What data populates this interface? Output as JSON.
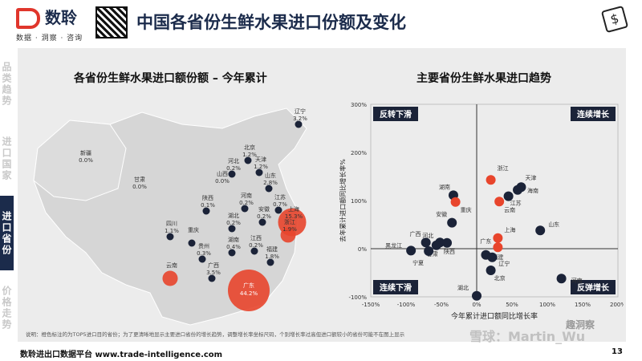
{
  "brand": {
    "name": "数聆",
    "tagline": "数据 · 洞察 · 咨询"
  },
  "page_title": "中国各省份生鲜水果进口份额及变化",
  "sidebar": [
    {
      "label": "品类趋势",
      "active": false
    },
    {
      "label": "进口国家",
      "active": false
    },
    {
      "label": "进口省份",
      "active": true
    },
    {
      "label": "价格走势",
      "active": false
    }
  ],
  "map": {
    "title": "各省份生鲜水果进口额份额 – 今年累计",
    "provinces": [
      {
        "name": "辽宁",
        "share": "3.2%",
        "highlight": false
      },
      {
        "name": "北京",
        "share": "1.2%",
        "highlight": false
      },
      {
        "name": "天津",
        "share": "1.2%",
        "highlight": false
      },
      {
        "name": "河北",
        "share": "0.2%",
        "highlight": false
      },
      {
        "name": "山西",
        "share": "0.0%",
        "highlight": false
      },
      {
        "name": "山东",
        "share": "2.8%",
        "highlight": false
      },
      {
        "name": "江苏",
        "share": "0.7%",
        "highlight": false
      },
      {
        "name": "上海",
        "share": "15.3%",
        "highlight": true
      },
      {
        "name": "浙江",
        "share": "1.9%",
        "highlight": true
      },
      {
        "name": "河南",
        "share": "0.2%",
        "highlight": false
      },
      {
        "name": "陕西",
        "share": "0.1%",
        "highlight": false
      },
      {
        "name": "安徽",
        "share": "0.2%",
        "highlight": false
      },
      {
        "name": "湖北",
        "share": "0.2%",
        "highlight": false
      },
      {
        "name": "四川",
        "share": "1.1%",
        "highlight": false
      },
      {
        "name": "重庆",
        "share": "",
        "highlight": false
      },
      {
        "name": "贵州",
        "share": "0.3%",
        "highlight": false
      },
      {
        "name": "湖南",
        "share": "0.4%",
        "highlight": false
      },
      {
        "name": "江西",
        "share": "0.2%",
        "highlight": false
      },
      {
        "name": "福建",
        "share": "1.8%",
        "highlight": false
      },
      {
        "name": "广东",
        "share": "44.2%",
        "highlight": true
      },
      {
        "name": "广西",
        "share": "3.5%",
        "highlight": false
      },
      {
        "name": "云南",
        "share": "",
        "highlight": true
      },
      {
        "name": "海南",
        "share": "1.3%",
        "highlight": false
      },
      {
        "name": "新疆",
        "share": "0.0%",
        "highlight": false
      },
      {
        "name": "甘肃",
        "share": "0.0%",
        "highlight": false
      }
    ]
  },
  "footnote": "说明：橙色标注的为TOP5进口目的省份；为了更清晰地显示主要进口省份的增长趋势，调整增长率坐标尺码，个别增长率过高但进口额较小的省份可能不在图上显示",
  "chart_data": {
    "type": "scatter",
    "title": "主要省份生鲜水果进口趋势",
    "xlabel": "今年累计进口额同比增长率",
    "ylabel": "去年累计进口额同比增长率%",
    "xlim": [
      -150,
      200
    ],
    "ylim": [
      -100,
      300
    ],
    "xticks": [
      "-150%",
      "-100%",
      "-50%",
      "0%",
      "50%",
      "100%",
      "150%",
      "200%"
    ],
    "yticks": [
      "-100%",
      "0%",
      "100%",
      "200%",
      "300%"
    ],
    "grid": false,
    "quadrants": {
      "top_left": "反转下滑",
      "top_right": "连续增长",
      "bottom_left": "连续下滑",
      "bottom_right": "反弹增长"
    },
    "colors": {
      "top5": "#e8452c",
      "other": "#1b2338"
    },
    "points": [
      {
        "label": "浙江",
        "x": 20,
        "y": 143,
        "top5": true
      },
      {
        "label": "天津",
        "x": 63,
        "y": 128,
        "top5": false
      },
      {
        "label": "海南",
        "x": 58,
        "y": 122,
        "top5": false
      },
      {
        "label": "江苏",
        "x": 45,
        "y": 109,
        "top5": false
      },
      {
        "label": "云南",
        "x": 32,
        "y": 98,
        "top5": true
      },
      {
        "label": "湖南",
        "x": -33,
        "y": 111,
        "top5": false
      },
      {
        "label": "重庆",
        "x": -30,
        "y": 97,
        "top5": true
      },
      {
        "label": "安徽",
        "x": -35,
        "y": 54,
        "top5": false
      },
      {
        "label": "山东",
        "x": 90,
        "y": 38,
        "top5": false
      },
      {
        "label": "上海",
        "x": 30,
        "y": 22,
        "top5": true
      },
      {
        "label": "广东",
        "x": 30,
        "y": 3,
        "top5": true
      },
      {
        "label": "广西",
        "x": -72,
        "y": 13,
        "top5": false
      },
      {
        "label": "河北",
        "x": -52,
        "y": 13,
        "top5": false
      },
      {
        "label": "黑龙江",
        "x": -93,
        "y": -4,
        "top5": false
      },
      {
        "label": "甘肃",
        "x": -57,
        "y": 7,
        "top5": false
      },
      {
        "label": "陕西",
        "x": -42,
        "y": 12,
        "top5": false
      },
      {
        "label": "宁夏",
        "x": -68,
        "y": -5,
        "top5": false
      },
      {
        "label": "福建",
        "x": 13,
        "y": -13,
        "top5": false
      },
      {
        "label": "辽宁",
        "x": 22,
        "y": -18,
        "top5": false
      },
      {
        "label": "北京",
        "x": 20,
        "y": -45,
        "top5": false
      },
      {
        "label": "河南",
        "x": 120,
        "y": -62,
        "top5": false
      },
      {
        "label": "湖北",
        "x": 0,
        "y": -98,
        "top5": false
      }
    ]
  },
  "watermark": {
    "left": "雪球：Martin_Wu",
    "right": "趣洞察"
  },
  "footer": {
    "text": "数聆进出口数据平台 www.trade-intelligence.com",
    "page": "13"
  }
}
